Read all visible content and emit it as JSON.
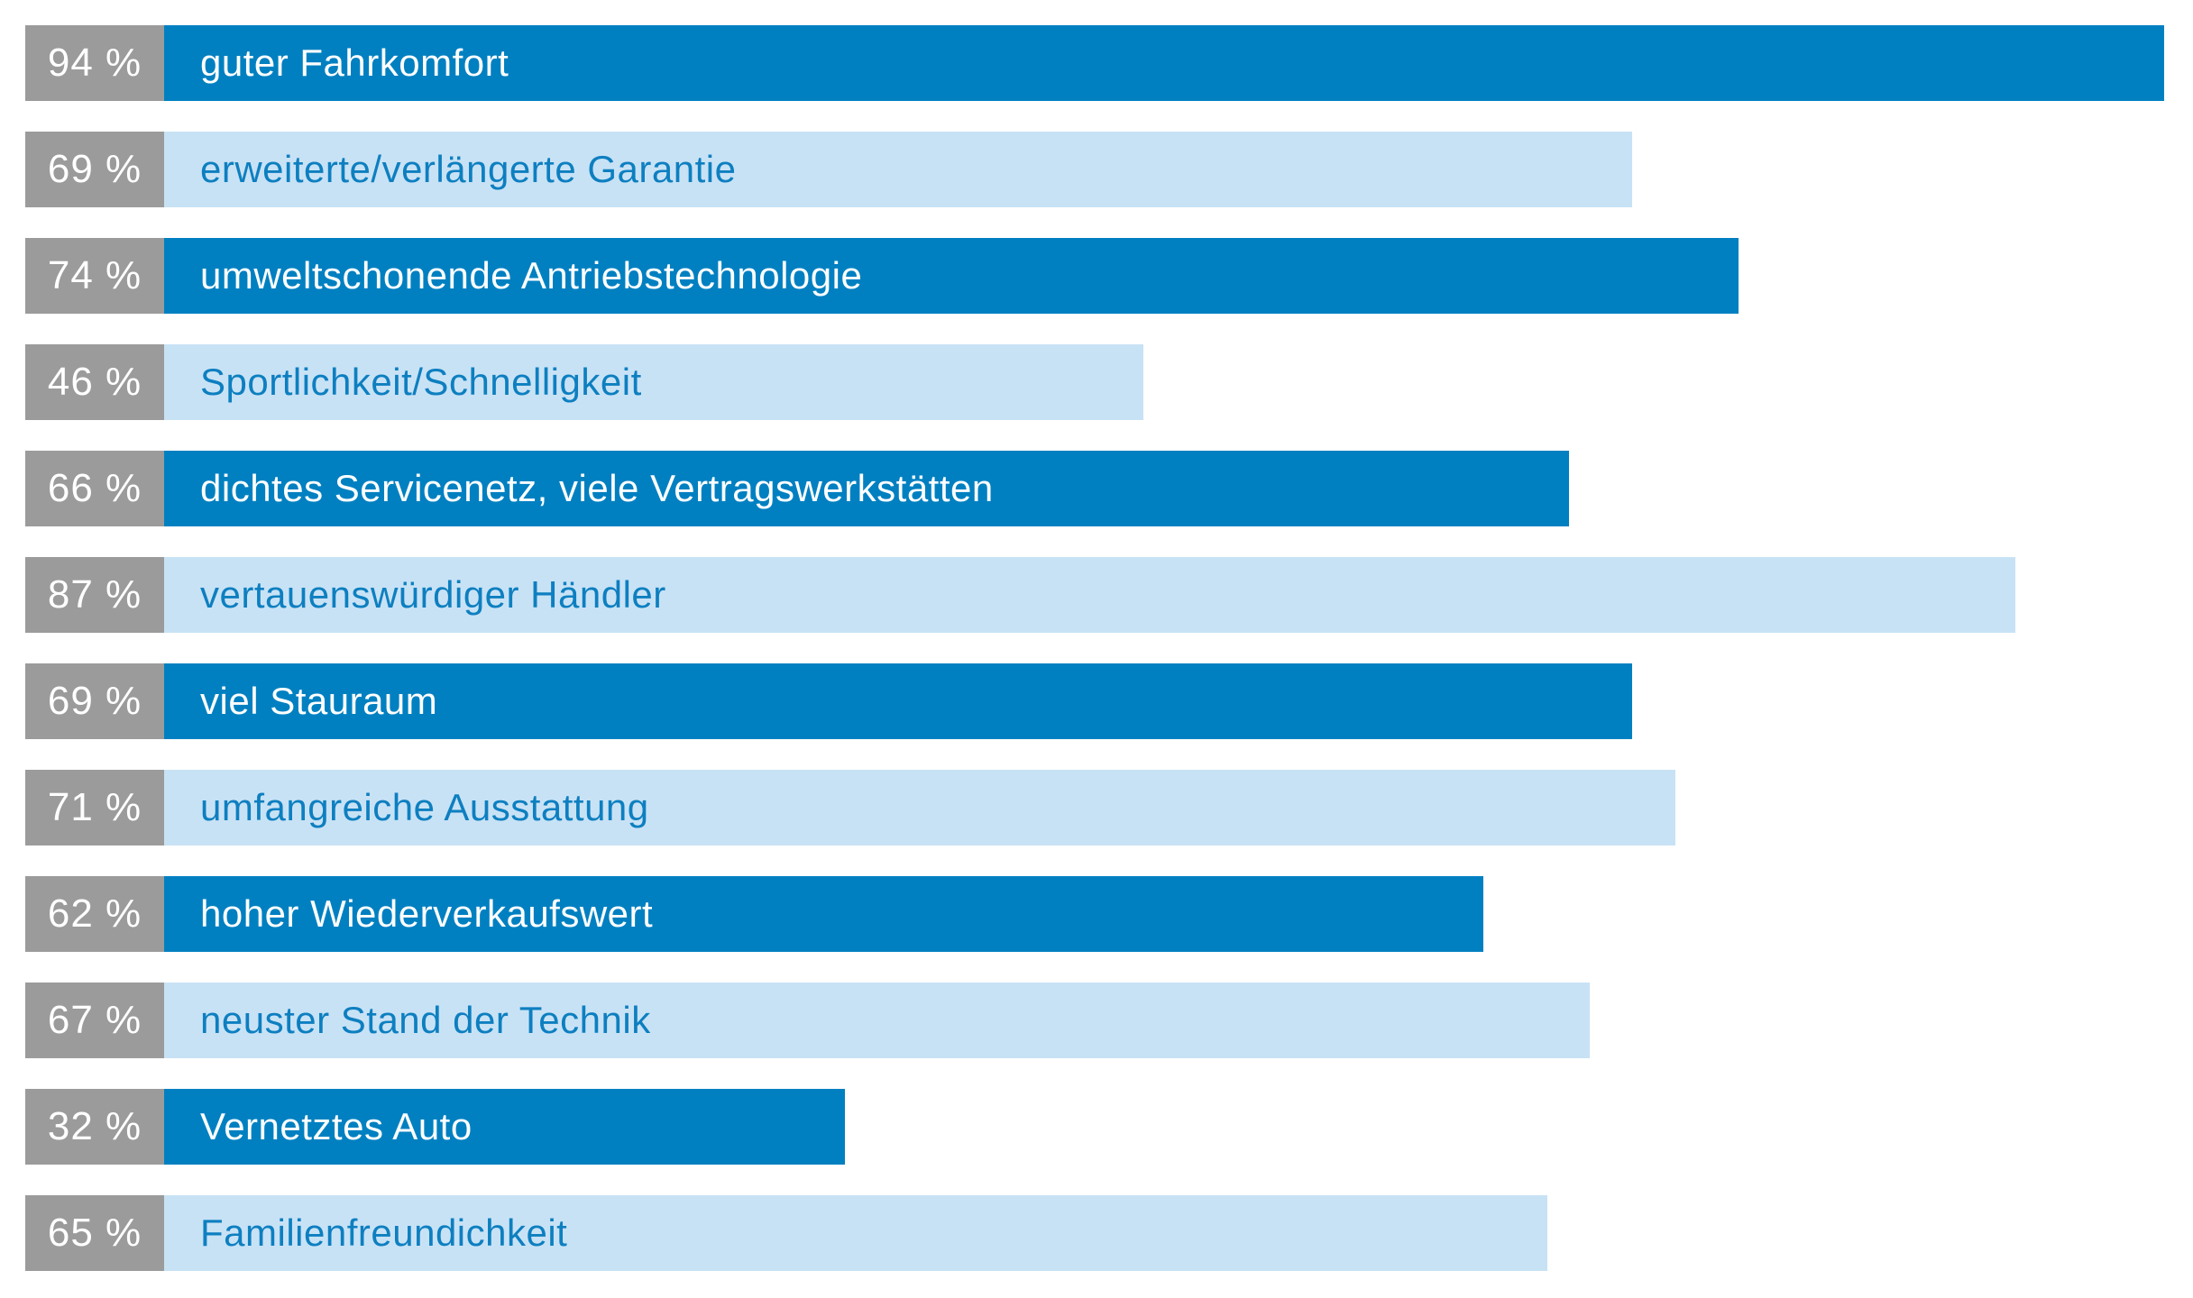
{
  "colors": {
    "dark_blue": "#0080c1",
    "light_blue": "#c8e2f5",
    "gray": "#9b9b9b",
    "text_on_dark": "#ffffff",
    "text_on_light": "#0d7fc0",
    "background": "#ffffff"
  },
  "chart_data": {
    "type": "bar",
    "orientation": "horizontal",
    "title": "",
    "xlabel": "",
    "ylabel": "",
    "unit": "%",
    "xlim": [
      0,
      100
    ],
    "grid": false,
    "legend": false,
    "categories": [
      "guter Fahrkomfort",
      "erweiterte/verlängerte Garantie",
      "umweltschonende Antriebstechnologie",
      "Sportlichkeit/Schnelligkeit",
      "dichtes Servicenetz, viele Vertragswerkstätten",
      "vertauenswürdiger Händler",
      "viel Stauraum",
      "umfangreiche Ausstattung",
      "hoher Wiederverkaufswert",
      "neuster Stand der Technik",
      "Vernetztes Auto",
      "Familienfreundichkeit"
    ],
    "values": [
      94,
      69,
      74,
      46,
      66,
      87,
      69,
      71,
      62,
      67,
      32,
      65
    ],
    "value_labels": [
      "94 %",
      "69 %",
      "74 %",
      "46 %",
      "66 %",
      "87 %",
      "69 %",
      "71 %",
      "62 %",
      "67 %",
      "32 %",
      "65 %"
    ],
    "bar_color_pattern": [
      "dark",
      "light"
    ]
  }
}
